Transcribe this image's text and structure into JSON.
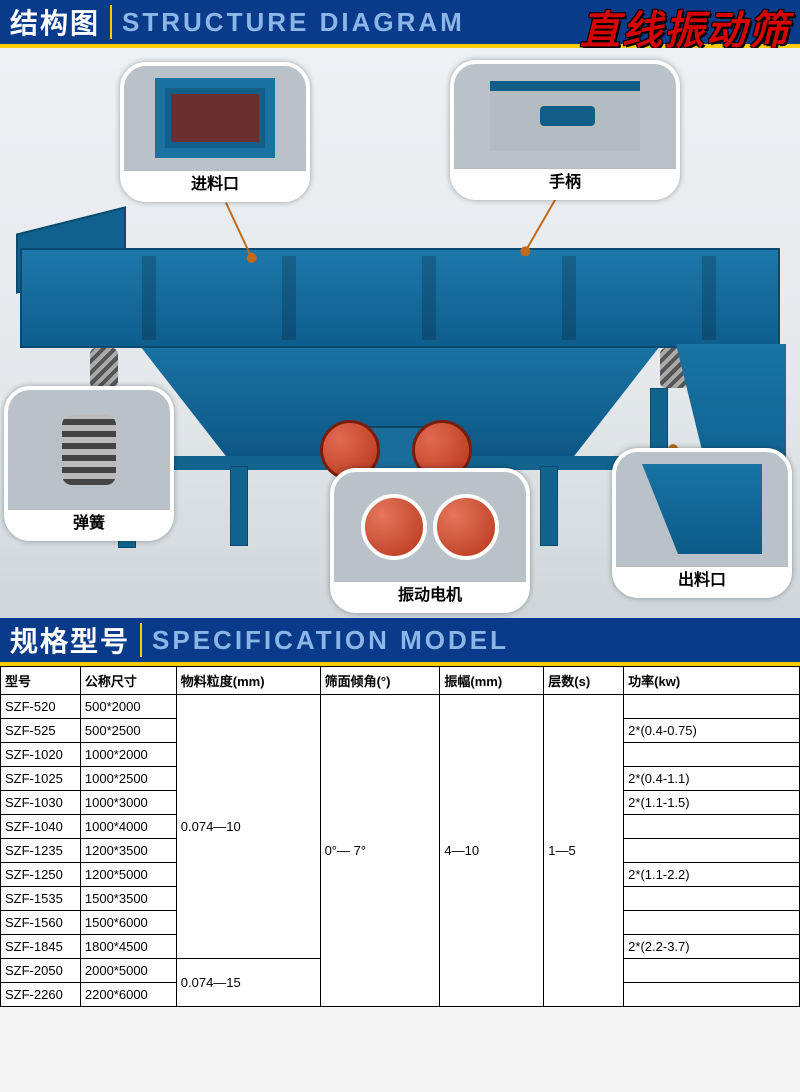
{
  "product_title": "直线振动筛",
  "header1": {
    "cn": "结构图",
    "en": "STRUCTURE DIAGRAM"
  },
  "header2": {
    "cn": "规格型号",
    "en": "SPECIFICATION MODEL"
  },
  "colors": {
    "header_bg": "#0a3b8a",
    "accent_yellow": "#ffcc00",
    "en_text": "#8cb6e8",
    "machine_blue": "#1972a2",
    "motor_red": "#b6341a",
    "lead_line": "#c06a1a",
    "red_title": "#d60000"
  },
  "callouts": {
    "inlet": {
      "label": "进料口"
    },
    "handle": {
      "label": "手柄"
    },
    "spring": {
      "label": "弹簧"
    },
    "motor": {
      "label": "振动电机"
    },
    "outlet": {
      "label": "出料口"
    }
  },
  "spec_table": {
    "columns": [
      "型号",
      "公称尺寸",
      "物料粒度(mm)",
      "筛面倾角(°)",
      "振幅(mm)",
      "层数(s)",
      "功率(kw)"
    ],
    "rows": [
      [
        "SZF-520",
        "500*2000",
        "",
        "",
        "",
        "",
        ""
      ],
      [
        "SZF-525",
        "500*2500",
        "",
        "",
        "",
        "",
        "2*(0.4-0.75)"
      ],
      [
        "SZF-1020",
        "1000*2000",
        "",
        "",
        "",
        "",
        ""
      ],
      [
        "SZF-1025",
        "1000*2500",
        "",
        "",
        "",
        "",
        "2*(0.4-1.1)"
      ],
      [
        "SZF-1030",
        "1000*3000",
        "",
        "",
        "",
        "",
        "2*(1.1-1.5)"
      ],
      [
        "SZF-1040",
        "1000*4000",
        "0.074—10",
        "",
        "",
        "",
        ""
      ],
      [
        "SZF-1235",
        "1200*3500",
        "",
        "0°— 7°",
        "4—10",
        "1—5",
        ""
      ],
      [
        "SZF-1250",
        "1200*5000",
        "",
        "",
        "",
        "",
        "2*(1.1-2.2)"
      ],
      [
        "SZF-1535",
        "1500*3500",
        "",
        "",
        "",
        "",
        ""
      ],
      [
        "SZF-1560",
        "1500*6000",
        "",
        "",
        "",
        "",
        ""
      ],
      [
        "SZF-1845",
        "1800*4500",
        "",
        "",
        "",
        "",
        "2*(2.2-3.7)"
      ],
      [
        "SZF-2050",
        "2000*5000",
        "0.074—15",
        "",
        "",
        "",
        ""
      ],
      [
        "SZF-2260",
        "2200*6000",
        "",
        "",
        "",
        "",
        ""
      ]
    ],
    "col_widths_pct": [
      10,
      12,
      18,
      15,
      13,
      10,
      22
    ],
    "merge_spec": {
      "col2_particle": [
        {
          "start": 0,
          "span": 6
        },
        {
          "start": 6,
          "span": 1
        },
        {
          "start": 7,
          "span": 4
        },
        {
          "start": 11,
          "span": 2
        }
      ],
      "col3_angle": {
        "start": 0,
        "span": 13
      },
      "col4_amp": {
        "start": 0,
        "span": 13
      },
      "col5_layers": {
        "start": 0,
        "span": 13
      }
    }
  }
}
